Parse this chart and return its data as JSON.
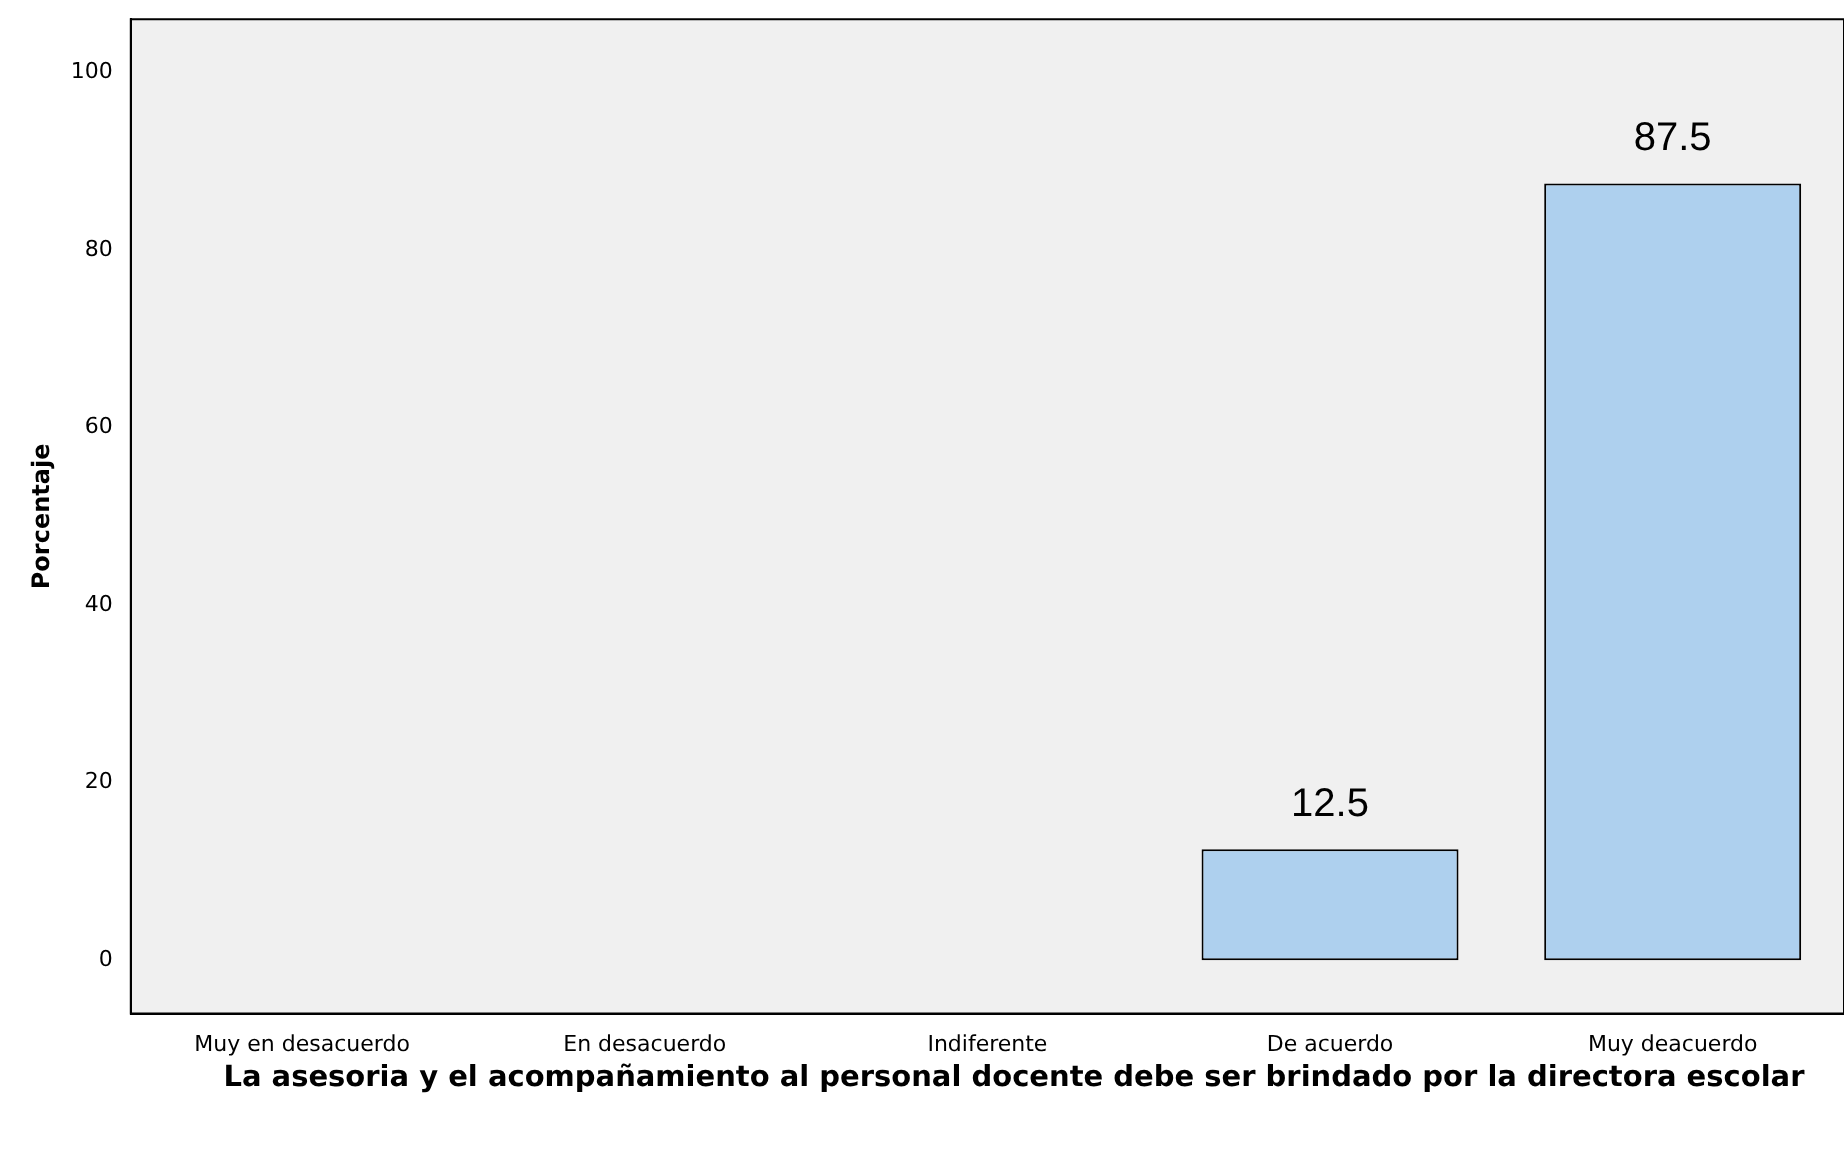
{
  "chart_data": {
    "type": "bar",
    "xlabel": "La asesoria y el acompañamiento al personal docente debe ser brindado por la directora escolar",
    "ylabel": "Porcentaje",
    "categories": [
      "Muy en desacuerdo",
      "En desacuerdo",
      "Indiferente",
      "De acuerdo",
      "Muy deacuerdo"
    ],
    "values": [
      0,
      0,
      0,
      12.5,
      87.5
    ],
    "color": "#aed0ee",
    "value_labels": [
      null,
      null,
      null,
      "12.5",
      "87.5"
    ],
    "ylim": [
      -6,
      106
    ],
    "yticks": [
      0,
      20,
      40,
      60,
      80,
      100
    ],
    "grid": false,
    "legend": false
  }
}
